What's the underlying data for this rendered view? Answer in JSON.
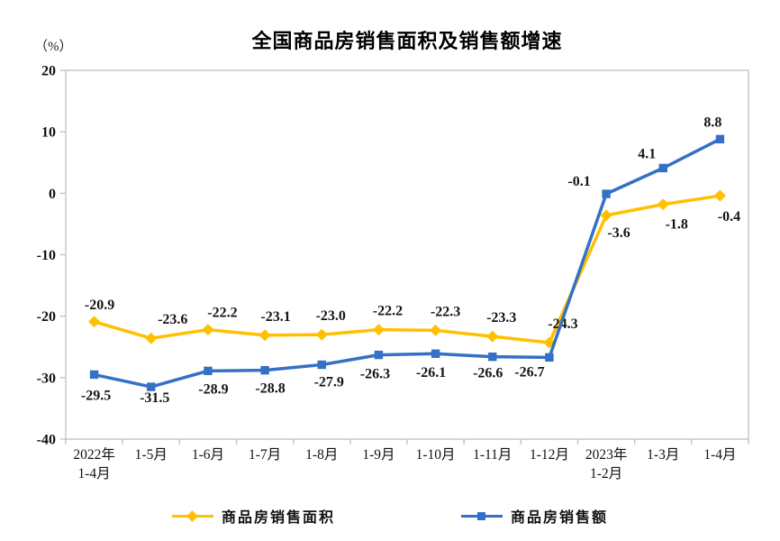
{
  "chart": {
    "title": "全国商品房销售面积及销售额增速",
    "unit_label": "（%）"
  },
  "chart_data": {
    "type": "line",
    "title": "全国商品房销售面积及销售额增速",
    "xlabel": "",
    "ylabel": "（%）",
    "ylim": [
      -40,
      20
    ],
    "yticks": [
      20,
      10,
      0,
      -10,
      -20,
      -30,
      -40
    ],
    "grid": false,
    "legend_position": "bottom",
    "axis_color": "#BFBFBF",
    "categories": [
      "2022年\n1-4月",
      "1-5月",
      "1-6月",
      "1-7月",
      "1-8月",
      "1-9月",
      "1-10月",
      "1-11月",
      "1-12月",
      "2023年\n1-2月",
      "1-3月",
      "1-4月"
    ],
    "series": [
      {
        "name": "商品房销售面积",
        "key": "area",
        "color": "#FFC000",
        "marker": "diamond",
        "values": [
          -20.9,
          -23.6,
          -22.2,
          -23.1,
          -23.0,
          -22.2,
          -22.3,
          -23.3,
          -24.3,
          -3.6,
          -1.8,
          -0.4
        ],
        "label_offsets": [
          [
            6,
            -14
          ],
          [
            24,
            -16
          ],
          [
            16,
            -14
          ],
          [
            12,
            -16
          ],
          [
            10,
            -16
          ],
          [
            10,
            -16
          ],
          [
            11,
            -16
          ],
          [
            10,
            -16
          ],
          [
            15,
            -16
          ],
          [
            14,
            24
          ],
          [
            15,
            27
          ],
          [
            10,
            28
          ]
        ]
      },
      {
        "name": "商品房销售额",
        "key": "sales",
        "color": "#3470C5",
        "marker": "square",
        "values": [
          -29.5,
          -31.5,
          -28.9,
          -28.8,
          -27.9,
          -26.3,
          -26.1,
          -26.6,
          -26.7,
          -0.1,
          4.1,
          8.8
        ],
        "label_offsets": [
          [
            2,
            28
          ],
          [
            4,
            17
          ],
          [
            6,
            25
          ],
          [
            6,
            25
          ],
          [
            8,
            24
          ],
          [
            -4,
            26
          ],
          [
            -5,
            26
          ],
          [
            -5,
            23
          ],
          [
            -22,
            21
          ],
          [
            -30,
            -9
          ],
          [
            -18,
            -11
          ],
          [
            -8,
            -14
          ]
        ]
      }
    ]
  }
}
